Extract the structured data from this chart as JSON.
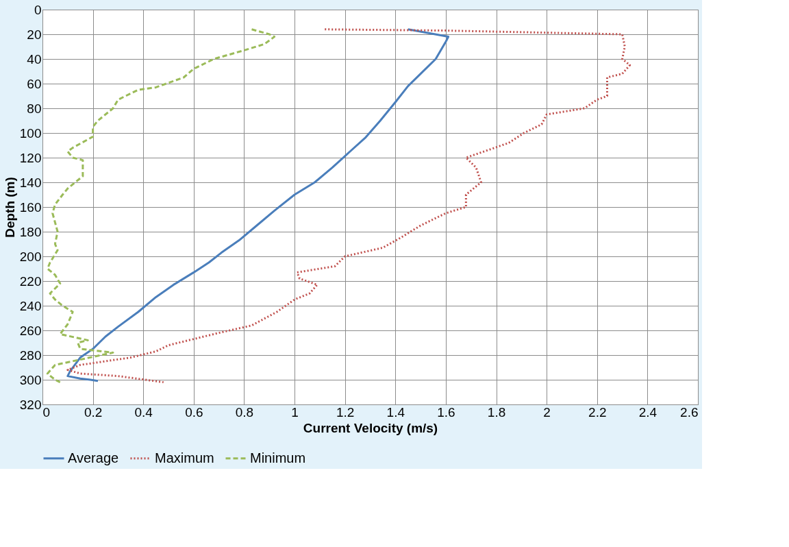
{
  "chart_data": {
    "type": "line",
    "xlabel": "Current Velocity (m/s)",
    "ylabel": "Depth (m)",
    "xlim": [
      0,
      2.6
    ],
    "xticks": [
      0,
      0.2,
      0.4,
      0.6,
      0.8,
      1,
      1.2,
      1.4,
      1.6,
      1.8,
      2,
      2.2,
      2.4,
      2.6
    ],
    "ylim": [
      320,
      0
    ],
    "yticks": [
      0,
      20,
      40,
      60,
      80,
      100,
      120,
      140,
      160,
      180,
      200,
      220,
      240,
      260,
      280,
      300,
      320
    ],
    "grid": true,
    "legend": "bottom",
    "marker": "none",
    "series": [
      {
        "name": "Average",
        "color": "#4a7ebb",
        "line_style": "solid",
        "x": [
          1.45,
          1.61,
          1.6,
          1.56,
          1.5,
          1.45,
          1.4,
          1.34,
          1.28,
          1.22,
          1.15,
          1.08,
          1.0,
          0.92,
          0.85,
          0.78,
          0.71,
          0.66,
          0.6,
          0.52,
          0.45,
          0.38,
          0.3,
          0.25,
          0.2,
          0.15,
          0.11,
          0.1,
          0.15,
          0.19,
          0.22
        ],
        "values": [
          16,
          22,
          26,
          40,
          52,
          62,
          75,
          90,
          104,
          115,
          128,
          140,
          150,
          163,
          175,
          187,
          197,
          205,
          213,
          223,
          233,
          245,
          257,
          265,
          275,
          282,
          293,
          297,
          299,
          300,
          301
        ]
      },
      {
        "name": "Maximum",
        "color": "#c0504d",
        "line_style": "dotted",
        "x": [
          1.12,
          1.6,
          2.3,
          2.31,
          2.3,
          2.33,
          2.3,
          2.24,
          2.24,
          2.2,
          2.15,
          2.0,
          1.98,
          1.91,
          1.85,
          1.78,
          1.68,
          1.72,
          1.74,
          1.68,
          1.68,
          1.6,
          1.5,
          1.42,
          1.35,
          1.2,
          1.16,
          1.01,
          1.02,
          1.09,
          1.06,
          1.0,
          0.93,
          0.83,
          0.7,
          0.6,
          0.5,
          0.45,
          0.35,
          0.25,
          0.15,
          0.1,
          0.15,
          0.3,
          0.48
        ],
        "values": [
          16,
          17,
          20,
          30,
          40,
          45,
          52,
          55,
          70,
          73,
          80,
          85,
          93,
          100,
          108,
          113,
          120,
          128,
          140,
          150,
          160,
          165,
          175,
          185,
          193,
          200,
          208,
          213,
          218,
          223,
          230,
          235,
          245,
          256,
          262,
          267,
          272,
          277,
          282,
          285,
          288,
          292,
          295,
          297,
          302
        ]
      },
      {
        "name": "Minimum",
        "color": "#9bbb59",
        "line_style": "dashed",
        "x": [
          0.83,
          0.9,
          0.92,
          0.88,
          0.8,
          0.68,
          0.6,
          0.56,
          0.45,
          0.38,
          0.3,
          0.28,
          0.22,
          0.2,
          0.2,
          0.12,
          0.1,
          0.12,
          0.16,
          0.16,
          0.1,
          0.08,
          0.05,
          0.04,
          0.06,
          0.05,
          0.06,
          0.03,
          0.02,
          0.05,
          0.07,
          0.03,
          0.05,
          0.08,
          0.12,
          0.1,
          0.07,
          0.18,
          0.14,
          0.15,
          0.28,
          0.05,
          0.02,
          0.05,
          0.07
        ],
        "values": [
          16,
          20,
          22,
          28,
          33,
          40,
          48,
          55,
          63,
          65,
          73,
          80,
          90,
          95,
          103,
          112,
          115,
          120,
          122,
          135,
          145,
          150,
          158,
          165,
          180,
          190,
          195,
          205,
          210,
          215,
          222,
          230,
          235,
          240,
          245,
          255,
          263,
          268,
          270,
          275,
          278,
          288,
          295,
          300,
          302
        ]
      }
    ]
  }
}
